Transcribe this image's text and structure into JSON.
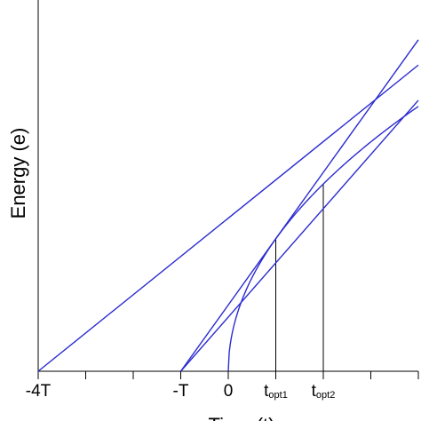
{
  "chart_data": {
    "type": "line",
    "title": "",
    "xlabel": "Time (t)",
    "ylabel": "Energy (e)",
    "xlim": [
      -4,
      4
    ],
    "ylim": [
      0,
      4.85
    ],
    "grid": false,
    "x_ticks": [
      -4,
      -3,
      -2,
      -1,
      0,
      1,
      2,
      3,
      4
    ],
    "x_tick_labels": [
      {
        "x": -4,
        "text": "-4T"
      },
      {
        "x": -1,
        "text": "-T"
      },
      {
        "x": 0,
        "text": "0"
      },
      {
        "x": 1,
        "base": "t",
        "sub": "opt1"
      },
      {
        "x": 2,
        "base": "t",
        "sub": "opt2"
      }
    ],
    "series": [
      {
        "color": "#2b2bd0",
        "x": [
          0,
          0.2,
          0.5,
          1,
          1.5,
          2,
          2.5,
          3,
          3.5,
          4
        ],
        "y": [
          0,
          0.77,
          1.22,
          1.73,
          2.12,
          2.45,
          2.74,
          3.0,
          3.24,
          3.46
        ]
      },
      {
        "color": "#2b2bd0",
        "x": [
          -4,
          4
        ],
        "y": [
          0,
          4.0
        ]
      },
      {
        "color": "#2b2bd0",
        "x": [
          -1,
          4
        ],
        "y": [
          0,
          4.33
        ]
      },
      {
        "color": "#2b2bd0",
        "x": [
          -1,
          4
        ],
        "y": [
          0,
          3.54
        ]
      }
    ],
    "annotations": [
      {
        "type": "vline",
        "x": 1,
        "y_top": 1.73
      },
      {
        "type": "vline",
        "x": 2,
        "y_top": 2.45
      }
    ]
  }
}
